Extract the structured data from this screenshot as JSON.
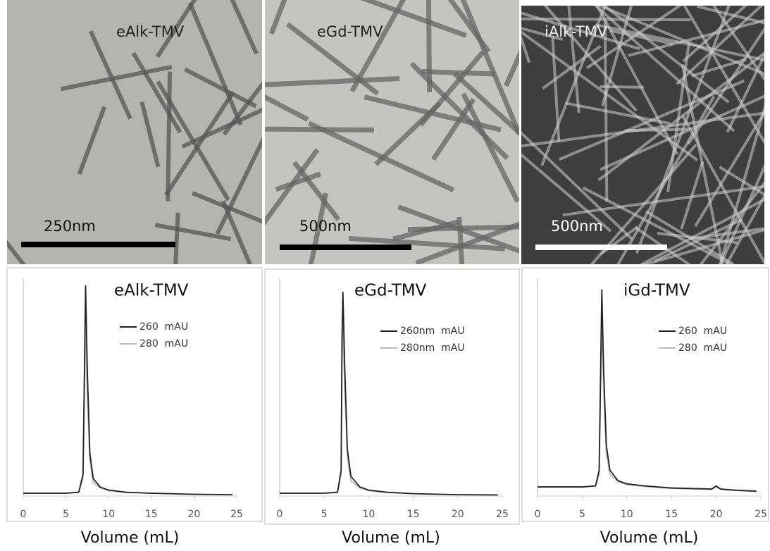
{
  "images": [
    {
      "label": "eAlk-TMV",
      "scale_label": "250nm"
    },
    {
      "label": "eGd-TMV",
      "scale_label": "500nm"
    },
    {
      "label": "iAlk-TMV",
      "scale_label": "500nm"
    }
  ],
  "chart_data": [
    {
      "type": "line",
      "title": "eAlk-TMV",
      "x_label": "Volume (mL)",
      "x": [
        0,
        5,
        6.5,
        7,
        7.2,
        7.3,
        7.5,
        7.8,
        8.2,
        9,
        10,
        12,
        15,
        20,
        24.5
      ],
      "series": [
        {
          "name": "260  mAU",
          "color": "#222222",
          "values": [
            1,
            1,
            1.5,
            10,
            70,
            100,
            60,
            20,
            8,
            4,
            2.5,
            1.5,
            1,
            0.5,
            0.3
          ]
        },
        {
          "name": "280  mAU",
          "color": "#bbbbbb",
          "values": [
            1,
            1,
            1.4,
            8,
            55,
            80,
            48,
            16,
            6,
            3.5,
            2.2,
            1.3,
            1,
            0.5,
            0.3
          ]
        }
      ],
      "xlim": [
        0,
        25
      ],
      "xticks": [
        0,
        5,
        10,
        15,
        20,
        25
      ],
      "ylim": [
        0,
        100
      ]
    },
    {
      "type": "line",
      "title": "eGd-TMV",
      "x_label": "Volume (mL)",
      "x": [
        0,
        5,
        6.5,
        6.9,
        7.0,
        7.1,
        7.3,
        7.6,
        8.0,
        9,
        10,
        12,
        15,
        20,
        24.5
      ],
      "series": [
        {
          "name": "260nm  mAU",
          "color": "#222222",
          "values": [
            1,
            1,
            1.5,
            12,
            75,
            97,
            62,
            22,
            9,
            4,
            2.5,
            1.5,
            0.8,
            0.3,
            0.2
          ]
        },
        {
          "name": "280nm  mAU",
          "color": "#bbbbbb",
          "values": [
            1,
            1,
            1.4,
            10,
            65,
            80,
            52,
            18,
            7,
            3.5,
            2.2,
            1.3,
            0.8,
            0.3,
            0.2
          ]
        }
      ],
      "xlim": [
        0,
        25
      ],
      "xticks": [
        0,
        5,
        10,
        15,
        20,
        25
      ],
      "ylim": [
        0,
        100
      ]
    },
    {
      "type": "line",
      "title": "iGd-TMV",
      "x_label": "Volume (mL)",
      "x": [
        0,
        5,
        6.5,
        6.9,
        7.1,
        7.2,
        7.4,
        7.7,
        8.1,
        9,
        10,
        12,
        15,
        19.5,
        20,
        20.5,
        22,
        24.5
      ],
      "series": [
        {
          "name": "260  mAU",
          "color": "#222222",
          "values": [
            4,
            4,
            4.5,
            12,
            70,
            98,
            60,
            24,
            12,
            7,
            5.5,
            4.5,
            3.5,
            3,
            4.5,
            3,
            2.5,
            2
          ]
        },
        {
          "name": "280  mAU",
          "color": "#bbbbbb",
          "values": [
            4,
            4,
            4.4,
            10,
            58,
            82,
            50,
            20,
            10,
            6.5,
            5,
            4.2,
            3.3,
            2.8,
            4,
            2.8,
            2.3,
            1.8
          ]
        }
      ],
      "xlim": [
        0,
        25
      ],
      "xticks": [
        0,
        5,
        10,
        15,
        20,
        25
      ],
      "ylim": [
        0,
        100
      ]
    }
  ]
}
